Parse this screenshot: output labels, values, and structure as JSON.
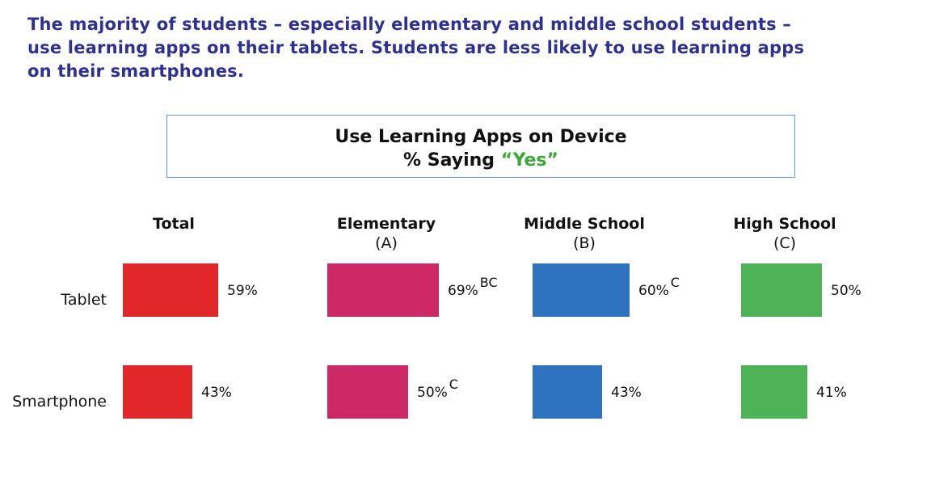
{
  "headline": {
    "line1": "The majority of students – especially elementary and middle school students –",
    "line2": "use learning apps on their tablets.  Students are less likely to use learning apps",
    "line3": "on their smartphones."
  },
  "chart_data": {
    "type": "bar",
    "title": "Use Learning Apps on Device",
    "subtitle_prefix": "% Saying ",
    "subtitle_highlight": "“Yes”",
    "rows": [
      "Tablet",
      "Smartphone"
    ],
    "groups": [
      {
        "name": "Total",
        "sub": "",
        "color": "#e0282b",
        "values": [
          59,
          43
        ],
        "labels": [
          "59%",
          "43%"
        ],
        "sig": [
          "",
          ""
        ]
      },
      {
        "name": "Elementary",
        "sub": "(A)",
        "color": "#cc2865",
        "values": [
          69,
          50
        ],
        "labels": [
          "69%",
          "50%"
        ],
        "sig": [
          "BC",
          "C"
        ]
      },
      {
        "name": "Middle School",
        "sub": "(B)",
        "color": "#2e72c0",
        "values": [
          60,
          43
        ],
        "labels": [
          "60%",
          "43%"
        ],
        "sig": [
          "C",
          ""
        ]
      },
      {
        "name": "High School",
        "sub": "(C)",
        "color": "#4db356",
        "values": [
          50,
          41
        ],
        "labels": [
          "50%",
          "41%"
        ],
        "sig": [
          "",
          ""
        ]
      }
    ]
  }
}
